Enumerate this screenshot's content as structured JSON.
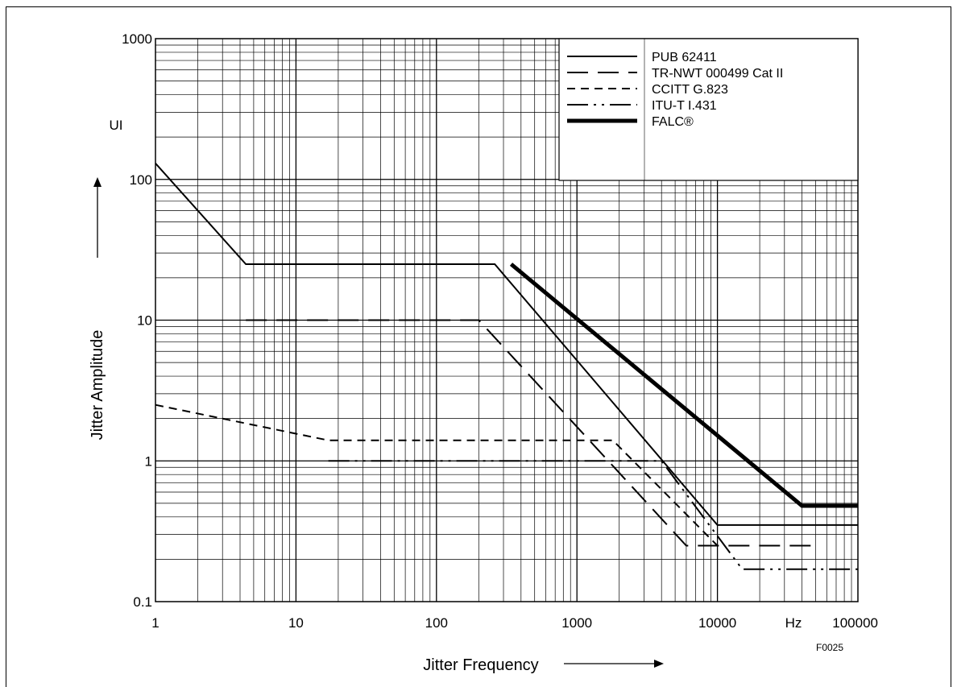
{
  "chart_data": {
    "type": "line",
    "xscale": "log",
    "yscale": "log",
    "xlim": [
      1,
      100000
    ],
    "ylim": [
      0.1,
      1000
    ],
    "xlabel": "Jitter Frequency",
    "ylabel": "Jitter Amplitude",
    "x_unit": "Hz",
    "y_unit": "UI",
    "figure_id": "F0025",
    "grid": true,
    "legend_position": "top-right",
    "x_ticks": [
      "1",
      "10",
      "100",
      "1000",
      "10000",
      "100000"
    ],
    "y_ticks": [
      "0.1",
      "1",
      "10",
      "100",
      "1000"
    ],
    "series": [
      {
        "name": "PUB 62411",
        "style": "solid",
        "points": [
          [
            1,
            130
          ],
          [
            4.4,
            25
          ],
          [
            260,
            25
          ],
          [
            10000,
            0.35
          ],
          [
            100000,
            0.35
          ]
        ]
      },
      {
        "name": "TR-NWT 000499 Cat II",
        "style": "longdash",
        "points": [
          [
            4.4,
            10
          ],
          [
            200,
            10
          ],
          [
            6000,
            0.25
          ],
          [
            10000,
            0.25
          ],
          [
            50000,
            0.25
          ]
        ]
      },
      {
        "name": "CCITT G.823",
        "style": "shortdash",
        "points": [
          [
            1,
            2.5
          ],
          [
            17,
            1.4
          ],
          [
            1800,
            1.4
          ],
          [
            10000,
            0.25
          ]
        ]
      },
      {
        "name": "ITU-T I.431",
        "style": "dashdotdot",
        "points": [
          [
            17,
            1
          ],
          [
            4000,
            1
          ],
          [
            15000,
            0.17
          ],
          [
            100000,
            0.17
          ]
        ]
      },
      {
        "name": "FALC®",
        "style": "thick",
        "points": [
          [
            340,
            25
          ],
          [
            40000,
            0.48
          ],
          [
            100000,
            0.48
          ]
        ]
      }
    ]
  }
}
